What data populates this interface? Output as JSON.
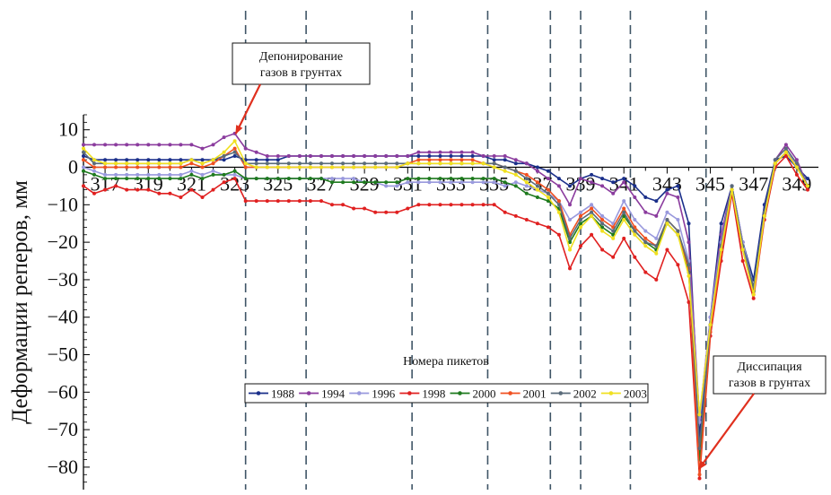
{
  "chart_data": {
    "type": "line",
    "ylabel": "Деформации реперов, мм",
    "xlabel": "Номера пикетов",
    "xlim": [
      316,
      350
    ],
    "ylim": [
      -86,
      14
    ],
    "y_ticks": [
      10,
      0,
      -10,
      -20,
      -30,
      -40,
      -50,
      -60,
      -70,
      -80
    ],
    "y_tick_labels": [
      "10",
      "0",
      "−10",
      "−20",
      "−30",
      "−40",
      "−50",
      "−60",
      "−70",
      "−80"
    ],
    "x_ticks": [
      317,
      319,
      321,
      323,
      325,
      327,
      329,
      331,
      333,
      335,
      337,
      339,
      341,
      343,
      345,
      347,
      349
    ],
    "x_tick_labels": [
      "317",
      "319",
      "321",
      "323",
      "325",
      "327",
      "329",
      "331",
      "333",
      "335",
      "337",
      "339",
      "341",
      "343",
      "345",
      "347",
      "349"
    ],
    "vlines": [
      323.5,
      326.3,
      331.2,
      334.7,
      337.6,
      339.0,
      341.3,
      344.8
    ],
    "legend_position": "bottom-center",
    "annotations": [
      {
        "text_lines": [
          "Депонирование",
          "газов в грунтах"
        ],
        "arrow_to": [
          322.8,
          8.5
        ]
      },
      {
        "text_lines": [
          "Диссипация",
          "газов в грунтах"
        ],
        "arrow_to": [
          344.3,
          -81
        ]
      }
    ],
    "x": [
      316.0,
      316.5,
      317.0,
      317.5,
      318.0,
      318.5,
      319.0,
      319.5,
      320.0,
      320.5,
      321.0,
      321.5,
      322.0,
      322.5,
      323.0,
      323.5,
      324.0,
      324.5,
      325.0,
      325.5,
      326.0,
      326.5,
      327.0,
      327.5,
      328.0,
      328.5,
      329.0,
      329.5,
      330.0,
      330.5,
      331.0,
      331.5,
      332.0,
      332.5,
      333.0,
      333.5,
      334.0,
      334.5,
      335.0,
      335.5,
      336.0,
      336.5,
      337.0,
      337.5,
      338.0,
      338.5,
      339.0,
      339.5,
      340.0,
      340.5,
      341.0,
      341.5,
      342.0,
      342.5,
      343.0,
      343.5,
      344.0,
      344.5,
      345.0,
      345.5,
      346.0,
      346.5,
      347.0,
      347.5,
      348.0,
      348.5,
      349.0,
      349.5
    ],
    "series": [
      {
        "name": "1988",
        "color": "#1a2f8a",
        "values": [
          3,
          2,
          2,
          2,
          2,
          2,
          2,
          2,
          2,
          2,
          2,
          2,
          2,
          2,
          3,
          2,
          2,
          2,
          2,
          3,
          3,
          3,
          3,
          3,
          3,
          3,
          3,
          3,
          3,
          3,
          3,
          3,
          3,
          3,
          3,
          3,
          3,
          3,
          2,
          2,
          1,
          1,
          0,
          -1,
          -3,
          -5,
          -3,
          -2,
          -3,
          -4,
          -3,
          -5,
          -8,
          -9,
          -6,
          -5,
          -15,
          -72,
          -40,
          -15,
          -5,
          -20,
          -30,
          -10,
          2,
          3,
          0,
          -3
        ]
      },
      {
        "name": "1994",
        "color": "#8b3c9e",
        "values": [
          6,
          6,
          6,
          6,
          6,
          6,
          6,
          6,
          6,
          6,
          6,
          5,
          6,
          8,
          9,
          5,
          4,
          3,
          3,
          3,
          3,
          3,
          3,
          3,
          3,
          3,
          3,
          3,
          3,
          3,
          3,
          4,
          4,
          4,
          4,
          4,
          4,
          3,
          3,
          3,
          2,
          1,
          -1,
          -3,
          -5,
          -10,
          -3,
          -4,
          -5,
          -7,
          -4,
          -8,
          -12,
          -13,
          -7,
          -8,
          -20,
          -67,
          -40,
          -18,
          -5,
          -20,
          -33,
          -12,
          2,
          6,
          2,
          -5
        ]
      },
      {
        "name": "1996",
        "color": "#9999dd",
        "values": [
          0,
          -1,
          -2,
          -2,
          -2,
          -2,
          -2,
          -2,
          -2,
          -2,
          -1,
          -2,
          -1,
          -2,
          -2,
          -3,
          -3,
          -3,
          -3,
          -3,
          -3,
          -3,
          -3,
          -3,
          -3,
          -3,
          -4,
          -4,
          -5,
          -5,
          -4,
          -4,
          -4,
          -4,
          -4,
          -4,
          -4,
          -4,
          -4,
          -5,
          -4,
          -5,
          -6,
          -7,
          -9,
          -14,
          -12,
          -10,
          -13,
          -15,
          -9,
          -14,
          -17,
          -19,
          -12,
          -14,
          -25,
          -68,
          -40,
          -20,
          -5,
          -20,
          -32,
          -12,
          1,
          4,
          1,
          -5
        ]
      },
      {
        "name": "1998",
        "color": "#e02020",
        "values": [
          -5,
          -7,
          -6,
          -5,
          -6,
          -6,
          -6,
          -7,
          -7,
          -8,
          -6,
          -8,
          -6,
          -4,
          -3,
          -9,
          -9,
          -9,
          -9,
          -9,
          -9,
          -9,
          -9,
          -10,
          -10,
          -11,
          -11,
          -12,
          -12,
          -12,
          -11,
          -10,
          -10,
          -10,
          -10,
          -10,
          -10,
          -10,
          -10,
          -12,
          -13,
          -14,
          -15,
          -16,
          -18,
          -27,
          -21,
          -18,
          -22,
          -24,
          -19,
          -24,
          -28,
          -30,
          -22,
          -26,
          -36,
          -83,
          -45,
          -25,
          -7,
          -25,
          -35,
          -14,
          0,
          3,
          -2,
          -6
        ]
      },
      {
        "name": "2000",
        "color": "#1e7a1e",
        "values": [
          -1,
          -2,
          -3,
          -3,
          -3,
          -3,
          -3,
          -3,
          -3,
          -3,
          -2,
          -3,
          -2,
          -2,
          -1,
          -3,
          -3,
          -3,
          -3,
          -3,
          -3,
          -3,
          -3,
          -4,
          -4,
          -4,
          -4,
          -4,
          -4,
          -4,
          -3,
          -3,
          -3,
          -3,
          -3,
          -3,
          -3,
          -3,
          -3,
          -4,
          -5,
          -7,
          -8,
          -9,
          -11,
          -20,
          -15,
          -13,
          -16,
          -18,
          -13,
          -17,
          -20,
          -22,
          -15,
          -18,
          -28,
          -78,
          -42,
          -22,
          -6,
          -22,
          -33,
          -13,
          1,
          4,
          0,
          -5
        ]
      },
      {
        "name": "2001",
        "color": "#f05020",
        "values": [
          2,
          0,
          0,
          0,
          0,
          0,
          0,
          0,
          0,
          0,
          1,
          0,
          1,
          3,
          5,
          0,
          0,
          0,
          0,
          0,
          0,
          0,
          0,
          0,
          0,
          0,
          0,
          0,
          0,
          0,
          1,
          2,
          2,
          2,
          2,
          2,
          2,
          1,
          1,
          0,
          -1,
          -2,
          -4,
          -6,
          -9,
          -18,
          -13,
          -11,
          -14,
          -16,
          -11,
          -16,
          -19,
          -21,
          -14,
          -17,
          -27,
          -82,
          -44,
          -23,
          -6,
          -22,
          -34,
          -13,
          1,
          4,
          0,
          -5
        ]
      },
      {
        "name": "2002",
        "color": "#5a6b7a",
        "values": [
          4,
          1,
          1,
          1,
          1,
          1,
          1,
          1,
          1,
          1,
          2,
          1,
          2,
          3,
          4,
          1,
          1,
          1,
          1,
          1,
          1,
          1,
          1,
          1,
          1,
          1,
          1,
          1,
          1,
          1,
          1,
          1,
          1,
          1,
          1,
          1,
          1,
          1,
          1,
          0,
          -1,
          -3,
          -5,
          -7,
          -10,
          -19,
          -14,
          -12,
          -15,
          -17,
          -12,
          -17,
          -20,
          -21,
          -14,
          -17,
          -26,
          -75,
          -42,
          -21,
          -5,
          -21,
          -32,
          -12,
          2,
          5,
          1,
          -5
        ]
      },
      {
        "name": "2003",
        "color": "#f0e020",
        "values": [
          5,
          2,
          1,
          1,
          1,
          1,
          1,
          1,
          1,
          1,
          2,
          1,
          2,
          4,
          7,
          1,
          0,
          0,
          0,
          0,
          0,
          0,
          0,
          0,
          0,
          0,
          0,
          0,
          0,
          0,
          1,
          1,
          1,
          1,
          1,
          1,
          1,
          1,
          0,
          -1,
          -2,
          -4,
          -6,
          -8,
          -12,
          -22,
          -16,
          -13,
          -17,
          -19,
          -14,
          -18,
          -21,
          -23,
          -15,
          -18,
          -29,
          -66,
          -42,
          -22,
          -6,
          -22,
          -34,
          -13,
          1,
          4,
          0,
          -5
        ]
      }
    ]
  }
}
